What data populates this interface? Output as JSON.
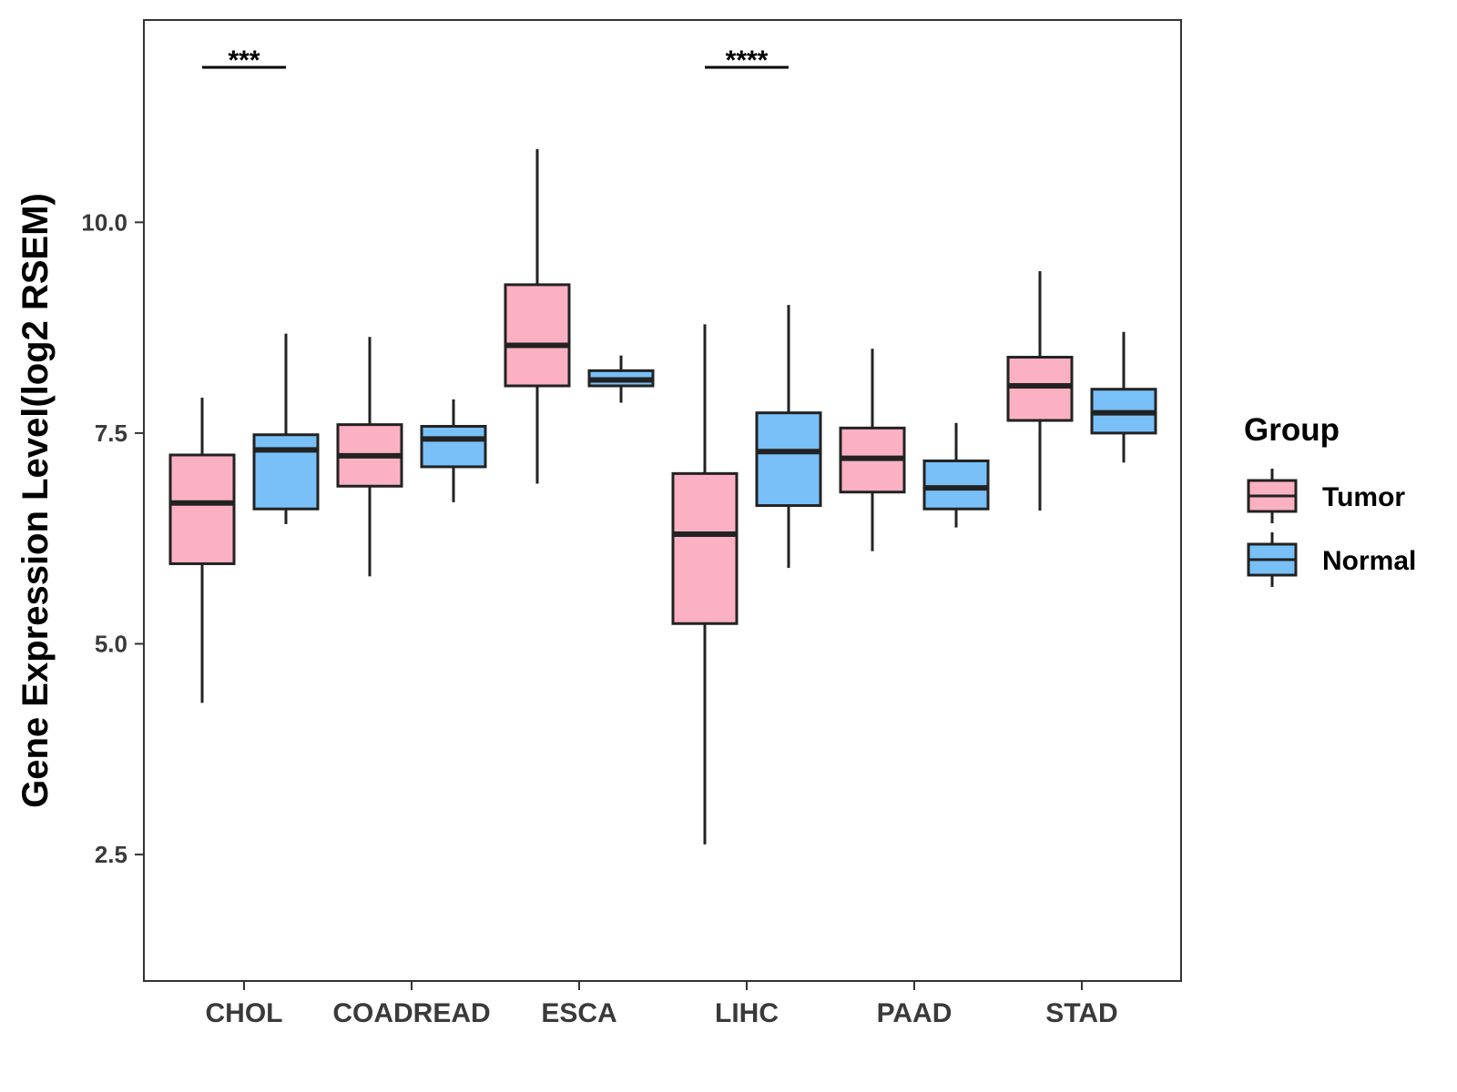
{
  "chart_data": {
    "type": "boxplot",
    "title": "",
    "xlabel": "",
    "ylabel": "Gene Expression Level(log2 RSEM)",
    "ylim": [
      1.0,
      12.4
    ],
    "yticks": [
      2.5,
      5.0,
      7.5,
      10.0
    ],
    "ytick_labels": [
      "2.5",
      "5.0",
      "7.5",
      "10.0"
    ],
    "categories": [
      "CHOL",
      "COADREAD",
      "ESCA",
      "LIHC",
      "PAAD",
      "STAD"
    ],
    "series": [
      {
        "name": "Tumor",
        "color": "#FBB1C3",
        "boxes": [
          {
            "whisker_low": 4.3,
            "q1": 5.95,
            "median": 6.67,
            "q3": 7.24,
            "whisker_high": 7.92
          },
          {
            "whisker_low": 5.8,
            "q1": 6.87,
            "median": 7.23,
            "q3": 7.6,
            "whisker_high": 8.64
          },
          {
            "whisker_low": 6.9,
            "q1": 8.06,
            "median": 8.54,
            "q3": 9.26,
            "whisker_high": 10.87
          },
          {
            "whisker_low": 2.62,
            "q1": 5.24,
            "median": 6.3,
            "q3": 7.02,
            "whisker_high": 8.79
          },
          {
            "whisker_low": 6.1,
            "q1": 6.8,
            "median": 7.2,
            "q3": 7.56,
            "whisker_high": 8.5
          },
          {
            "whisker_low": 6.58,
            "q1": 7.65,
            "median": 8.06,
            "q3": 8.4,
            "whisker_high": 9.42
          }
        ]
      },
      {
        "name": "Normal",
        "color": "#78C0F7",
        "boxes": [
          {
            "whisker_low": 6.42,
            "q1": 6.6,
            "median": 7.3,
            "q3": 7.48,
            "whisker_high": 8.68
          },
          {
            "whisker_low": 6.68,
            "q1": 7.1,
            "median": 7.43,
            "q3": 7.58,
            "whisker_high": 7.9
          },
          {
            "whisker_low": 7.86,
            "q1": 8.06,
            "median": 8.13,
            "q3": 8.24,
            "whisker_high": 8.42
          },
          {
            "whisker_low": 5.9,
            "q1": 6.64,
            "median": 7.28,
            "q3": 7.74,
            "whisker_high": 9.02
          },
          {
            "whisker_low": 6.38,
            "q1": 6.6,
            "median": 6.85,
            "q3": 7.17,
            "whisker_high": 7.62
          },
          {
            "whisker_low": 7.15,
            "q1": 7.5,
            "median": 7.74,
            "q3": 8.02,
            "whisker_high": 8.7
          }
        ]
      }
    ],
    "significance": [
      {
        "category": "CHOL",
        "label": "***"
      },
      {
        "category": "LIHC",
        "label": "****"
      }
    ],
    "legend": {
      "title": "Group",
      "position": "right",
      "items": [
        "Tumor",
        "Normal"
      ]
    },
    "grid": false
  }
}
